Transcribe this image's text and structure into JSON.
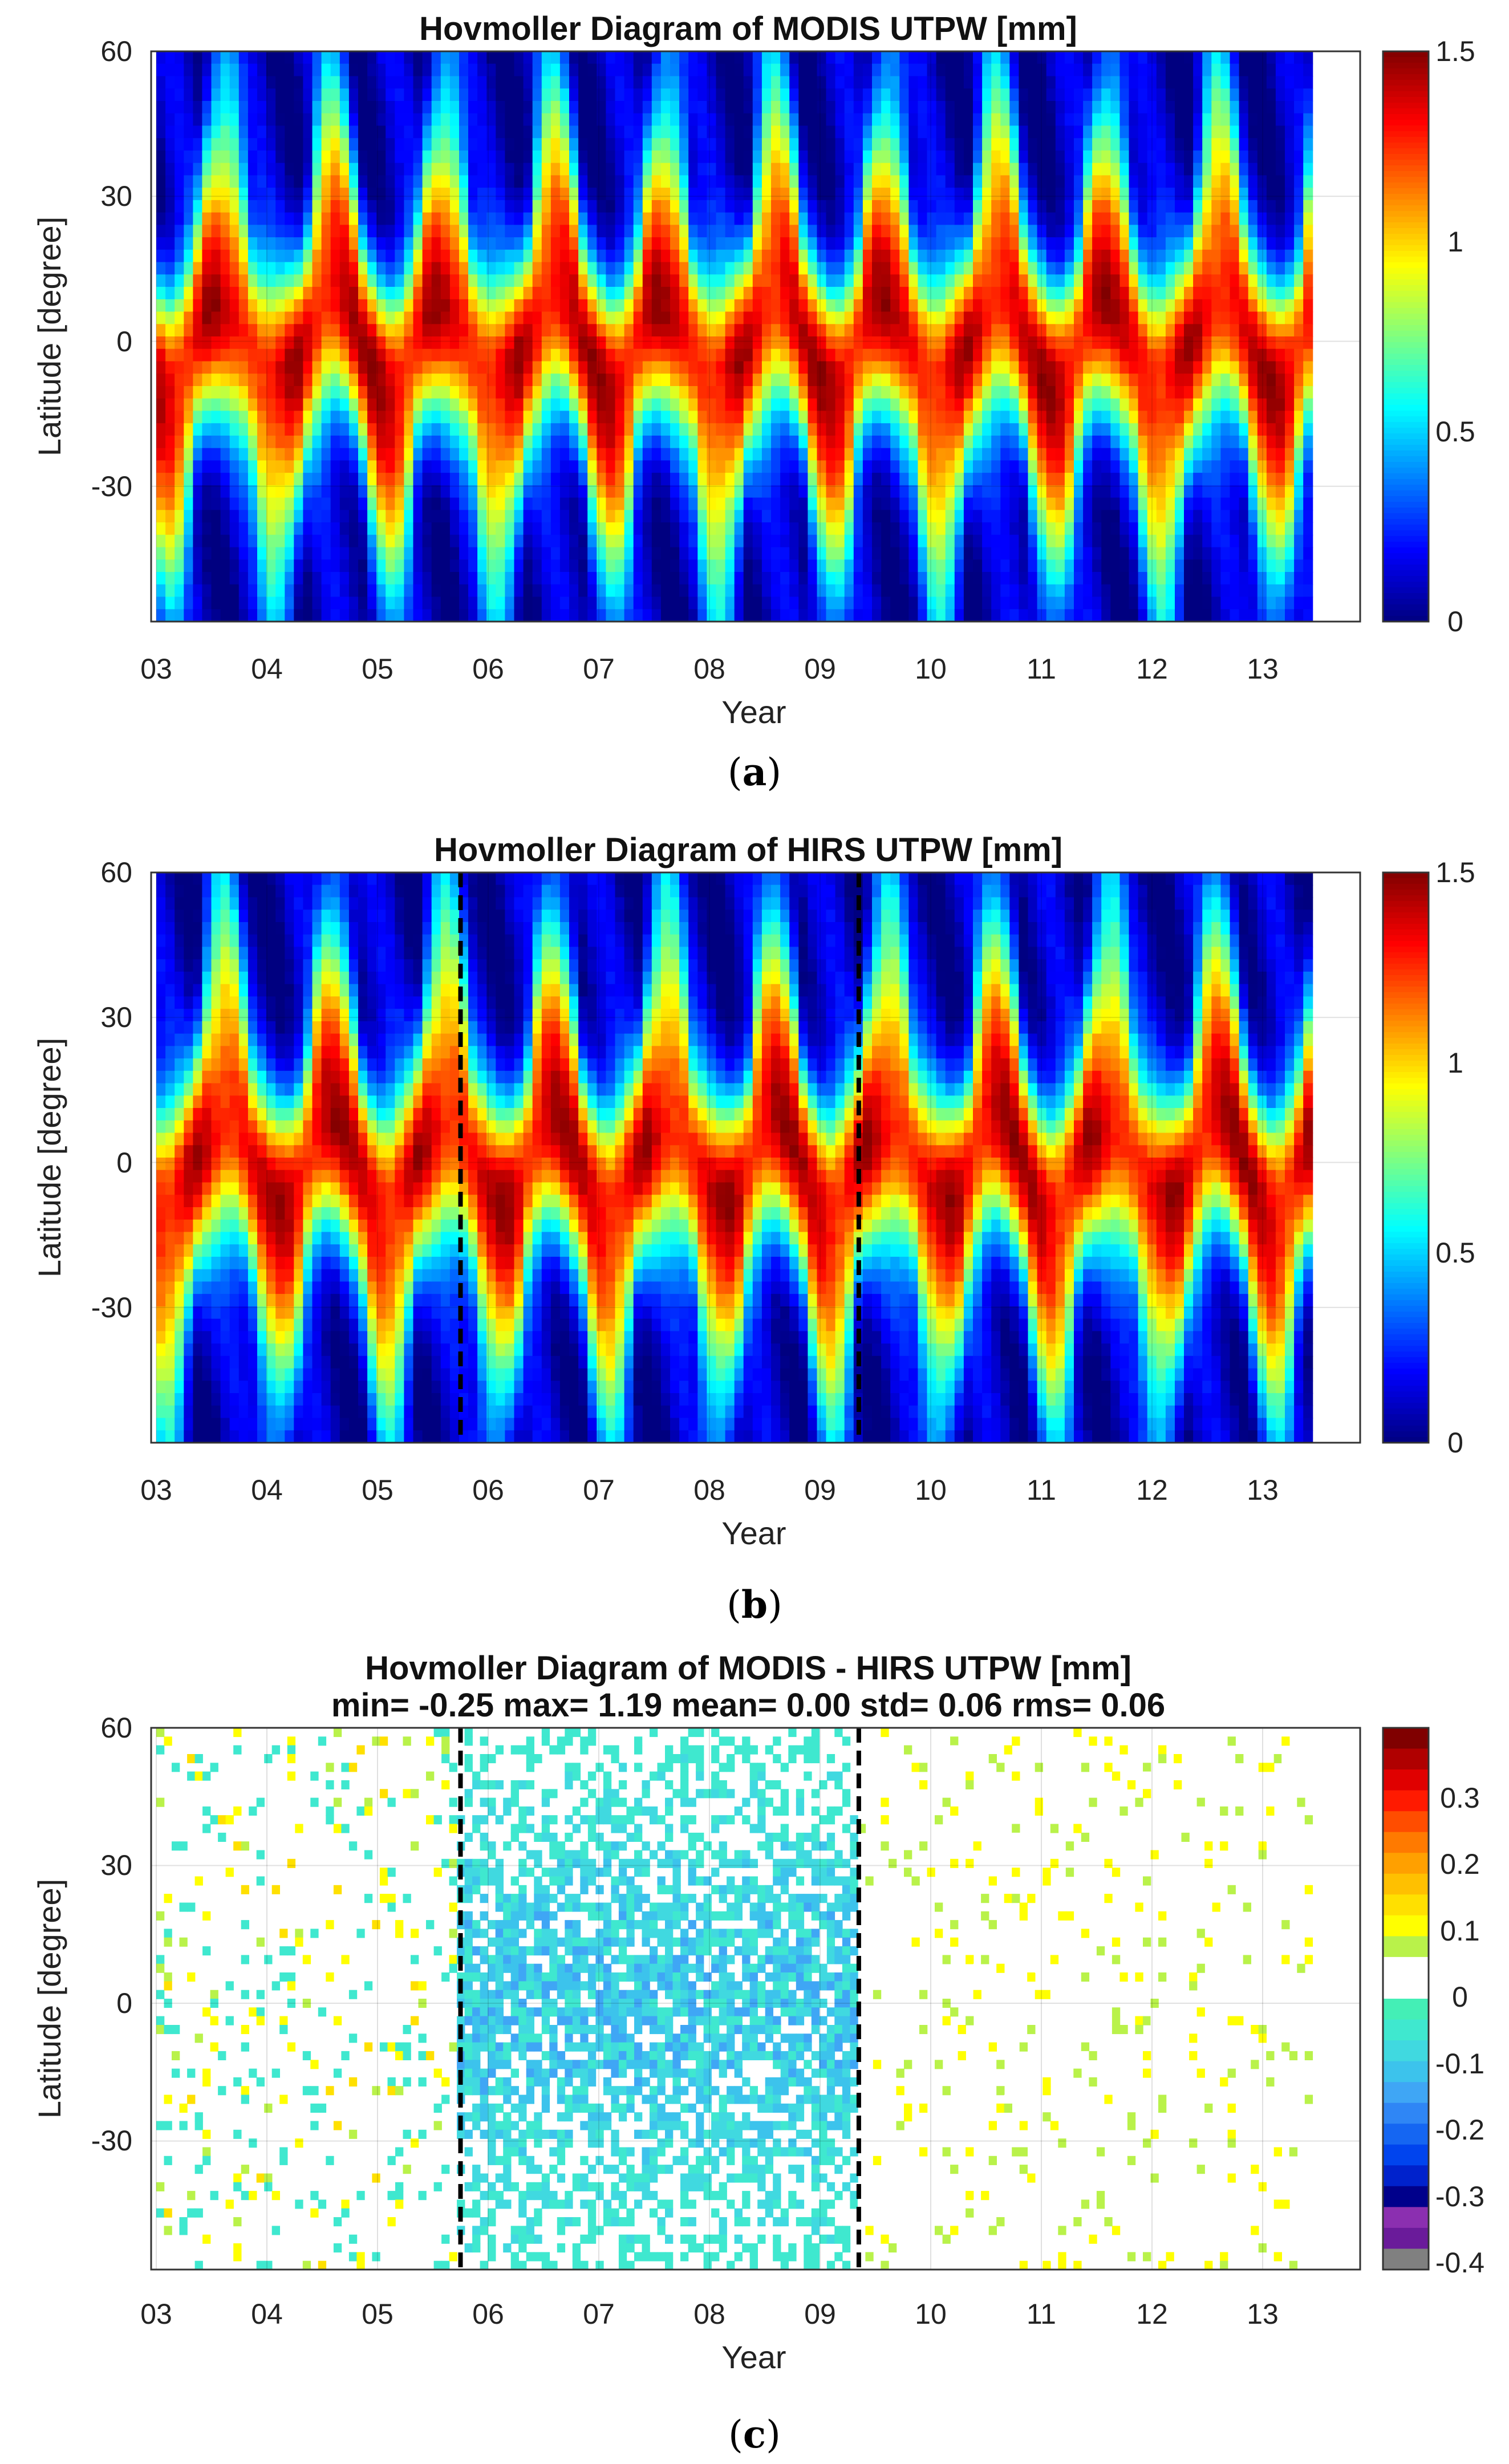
{
  "chart_data": [
    {
      "id": "a",
      "type": "heatmap",
      "title": "Hovmoller Diagram of MODIS UTPW [mm]",
      "xlabel": "Year",
      "ylabel": "Latitude [degree]",
      "x_ticks": [
        "03",
        "04",
        "05",
        "06",
        "07",
        "08",
        "09",
        "10",
        "11",
        "12",
        "13"
      ],
      "y_ticks": [
        "60",
        "30",
        "0",
        "-30"
      ],
      "ylim": [
        -58,
        60
      ],
      "colorbar_ticks": [
        "1.5",
        "1",
        "0.5",
        "0"
      ],
      "colorbar_range": [
        0,
        1.5
      ],
      "caption_letter": "a",
      "vertical_lines": []
    },
    {
      "id": "b",
      "type": "heatmap",
      "title": "Hovmoller Diagram of HIRS UTPW [mm]",
      "xlabel": "Year",
      "ylabel": "Latitude [degree]",
      "x_ticks": [
        "03",
        "04",
        "05",
        "06",
        "07",
        "08",
        "09",
        "10",
        "11",
        "12",
        "13"
      ],
      "y_ticks": [
        "60",
        "30",
        "0",
        "-30"
      ],
      "ylim": [
        -58,
        60
      ],
      "colorbar_ticks": [
        "1.5",
        "1",
        "0.5",
        "0"
      ],
      "colorbar_range": [
        0,
        1.5
      ],
      "caption_letter": "b",
      "vertical_lines": [
        5.75,
        9.35
      ]
    },
    {
      "id": "c",
      "type": "heatmap",
      "title": "Hovmoller Diagram of MODIS - HIRS UTPW [mm]",
      "subtitle": "min= -0.25 max= 1.19 mean= 0.00 std= 0.06 rms= 0.06",
      "xlabel": "Year",
      "ylabel": "Latitude [degree]",
      "x_ticks": [
        "03",
        "04",
        "05",
        "06",
        "07",
        "08",
        "09",
        "10",
        "11",
        "12",
        "13"
      ],
      "y_ticks": [
        "60",
        "30",
        "0",
        "-30"
      ],
      "ylim": [
        -58,
        60
      ],
      "colorbar_ticks": [
        "0.3",
        "0.2",
        "0.1",
        "0",
        "-0.1",
        "-0.2",
        "-0.3",
        "-0.4"
      ],
      "colorbar_range": [
        -0.45,
        0.4
      ],
      "colorbar_colors": [
        "#808080",
        "#6a1b9a",
        "#8b2fb0",
        "#00008b",
        "#0022cc",
        "#0044ee",
        "#1566f2",
        "#2f86f5",
        "#3fa6f5",
        "#3cc3ec",
        "#40d9e0",
        "#3fe8cf",
        "#44efb6",
        "#ffffff",
        "#ffffff",
        "#b9f24a",
        "#ffff00",
        "#ffe000",
        "#ffc000",
        "#ffa000",
        "#ff7a00",
        "#ff4d00",
        "#ff1a00",
        "#e00000",
        "#b00000",
        "#800000"
      ],
      "caption_letter": "c",
      "vertical_lines": [
        5.75,
        9.35
      ]
    }
  ]
}
